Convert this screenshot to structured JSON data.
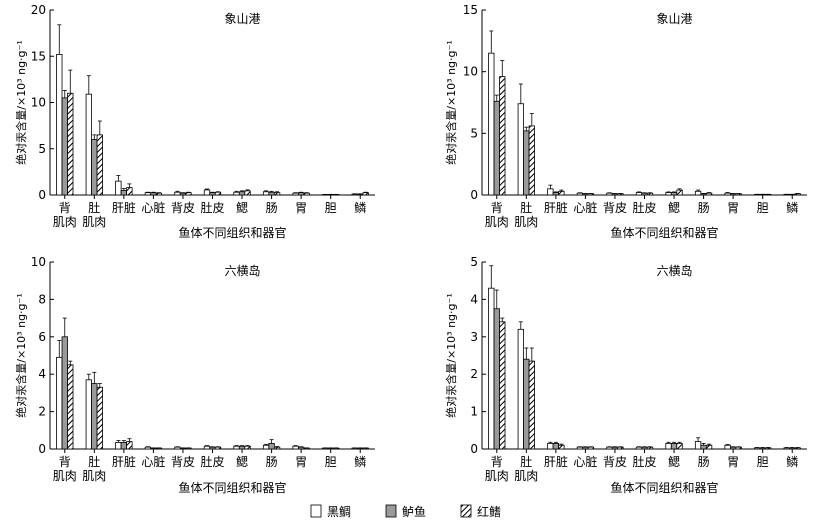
{
  "colors": {
    "series_fill": [
      "#ffffff",
      "#9a9a9a",
      "hatch"
    ]
  },
  "legend": {
    "entries": [
      "黑鲷",
      "鲈鱼",
      "红鳍"
    ]
  },
  "chart_data": [
    {
      "type": "bar",
      "title": "象山港",
      "xlabel": "鱼体不同组织和器官",
      "ylabel": "绝对汞含量/×10³ ng·g⁻¹",
      "ylim": [
        0,
        20
      ],
      "yticks": [
        0,
        5,
        10,
        15,
        20
      ],
      "categories": [
        "背肌肉",
        "肚肌肉",
        "肝脏",
        "心脏",
        "背皮",
        "肚皮",
        "鳃",
        "肠",
        "胃",
        "胆",
        "鳞"
      ],
      "series": [
        {
          "name": "黑鲷",
          "values": [
            15.2,
            10.9,
            1.5,
            0.25,
            0.3,
            0.55,
            0.3,
            0.35,
            0.2,
            0.05,
            0.1
          ],
          "errors": [
            3.2,
            2.0,
            0.6,
            0.05,
            0.1,
            0.1,
            0.1,
            0.1,
            0.05,
            0.02,
            0.03
          ]
        },
        {
          "name": "鲈鱼",
          "values": [
            10.5,
            6.0,
            0.5,
            0.25,
            0.2,
            0.25,
            0.35,
            0.3,
            0.25,
            0.05,
            0.1
          ],
          "errors": [
            0.8,
            0.5,
            0.2,
            0.05,
            0.05,
            0.05,
            0.1,
            0.1,
            0.05,
            0.02,
            0.03
          ]
        },
        {
          "name": "红鳍",
          "values": [
            11.0,
            6.5,
            0.8,
            0.2,
            0.25,
            0.3,
            0.45,
            0.25,
            0.2,
            0.05,
            0.25
          ],
          "errors": [
            2.5,
            1.5,
            0.4,
            0.05,
            0.05,
            0.05,
            0.1,
            0.1,
            0.05,
            0.02,
            0.05
          ]
        }
      ]
    },
    {
      "type": "bar",
      "title": "象山港",
      "xlabel": "鱼体不同组织和器官",
      "ylabel": "绝对汞含量/×10³ ng·g⁻¹",
      "ylim": [
        0,
        15
      ],
      "yticks": [
        0,
        5,
        10,
        15
      ],
      "categories": [
        "背肌肉",
        "肚肌肉",
        "肝脏",
        "心脏",
        "背皮",
        "肚皮",
        "鳃",
        "肠",
        "胃",
        "胆",
        "鳞"
      ],
      "series": [
        {
          "name": "黑鲷",
          "values": [
            11.5,
            7.4,
            0.5,
            0.15,
            0.15,
            0.2,
            0.2,
            0.3,
            0.15,
            0.05,
            0.05
          ],
          "errors": [
            1.8,
            1.6,
            0.3,
            0.03,
            0.03,
            0.05,
            0.05,
            0.1,
            0.05,
            0.01,
            0.01
          ]
        },
        {
          "name": "鲈鱼",
          "values": [
            7.6,
            5.2,
            0.2,
            0.1,
            0.1,
            0.15,
            0.2,
            0.1,
            0.1,
            0.05,
            0.05
          ],
          "errors": [
            0.5,
            0.3,
            0.05,
            0.02,
            0.02,
            0.03,
            0.05,
            0.03,
            0.02,
            0.01,
            0.01
          ]
        },
        {
          "name": "红鳍",
          "values": [
            9.6,
            5.6,
            0.3,
            0.1,
            0.1,
            0.15,
            0.4,
            0.15,
            0.1,
            0.05,
            0.1
          ],
          "errors": [
            1.3,
            1.0,
            0.1,
            0.02,
            0.02,
            0.03,
            0.1,
            0.05,
            0.02,
            0.01,
            0.02
          ]
        }
      ]
    },
    {
      "type": "bar",
      "title": "六横岛",
      "xlabel": "鱼体不同组织和器官",
      "ylabel": "绝对汞含量/×10³ ng·g⁻¹",
      "ylim": [
        0,
        10
      ],
      "yticks": [
        0,
        2,
        4,
        6,
        8,
        10
      ],
      "categories": [
        "背肌肉",
        "肚肌肉",
        "肝脏",
        "心脏",
        "背皮",
        "肚皮",
        "鳃",
        "肠",
        "胃",
        "胆",
        "鳞"
      ],
      "series": [
        {
          "name": "黑鲷",
          "values": [
            4.9,
            3.7,
            0.35,
            0.1,
            0.1,
            0.15,
            0.15,
            0.2,
            0.15,
            0.05,
            0.05
          ],
          "errors": [
            0.9,
            0.3,
            0.1,
            0.02,
            0.02,
            0.03,
            0.03,
            0.05,
            0.03,
            0.01,
            0.01
          ]
        },
        {
          "name": "鲈鱼",
          "values": [
            6.0,
            3.5,
            0.35,
            0.05,
            0.05,
            0.1,
            0.15,
            0.3,
            0.1,
            0.05,
            0.05
          ],
          "errors": [
            1.0,
            0.6,
            0.1,
            0.01,
            0.01,
            0.02,
            0.03,
            0.2,
            0.02,
            0.01,
            0.01
          ]
        },
        {
          "name": "红鳍",
          "values": [
            4.5,
            3.3,
            0.4,
            0.05,
            0.05,
            0.1,
            0.15,
            0.1,
            0.05,
            0.05,
            0.05
          ],
          "errors": [
            0.2,
            0.2,
            0.15,
            0.01,
            0.01,
            0.02,
            0.03,
            0.03,
            0.01,
            0.01,
            0.01
          ]
        }
      ]
    },
    {
      "type": "bar",
      "title": "六横岛",
      "xlabel": "鱼体不同组织和器官",
      "ylabel": "绝对汞含量/×10³ ng·g⁻¹",
      "ylim": [
        0,
        5
      ],
      "yticks": [
        0,
        1,
        2,
        3,
        4,
        5
      ],
      "categories": [
        "背肌肉",
        "肚肌肉",
        "肝脏",
        "心脏",
        "背皮",
        "肚皮",
        "鳃",
        "肠",
        "胃",
        "胆",
        "鳞"
      ],
      "series": [
        {
          "name": "黑鲷",
          "values": [
            4.3,
            3.2,
            0.15,
            0.05,
            0.05,
            0.05,
            0.15,
            0.2,
            0.1,
            0.03,
            0.03
          ],
          "errors": [
            0.6,
            0.2,
            0.03,
            0.01,
            0.01,
            0.01,
            0.03,
            0.1,
            0.02,
            0.01,
            0.01
          ]
        },
        {
          "name": "鲈鱼",
          "values": [
            3.75,
            2.4,
            0.15,
            0.05,
            0.05,
            0.05,
            0.15,
            0.1,
            0.05,
            0.03,
            0.03
          ],
          "errors": [
            0.5,
            0.3,
            0.03,
            0.01,
            0.01,
            0.01,
            0.03,
            0.05,
            0.01,
            0.01,
            0.01
          ]
        },
        {
          "name": "红鳍",
          "values": [
            3.4,
            2.35,
            0.1,
            0.05,
            0.05,
            0.05,
            0.15,
            0.1,
            0.05,
            0.03,
            0.03
          ],
          "errors": [
            0.1,
            0.35,
            0.03,
            0.01,
            0.01,
            0.01,
            0.03,
            0.03,
            0.01,
            0.01,
            0.01
          ]
        }
      ]
    }
  ]
}
